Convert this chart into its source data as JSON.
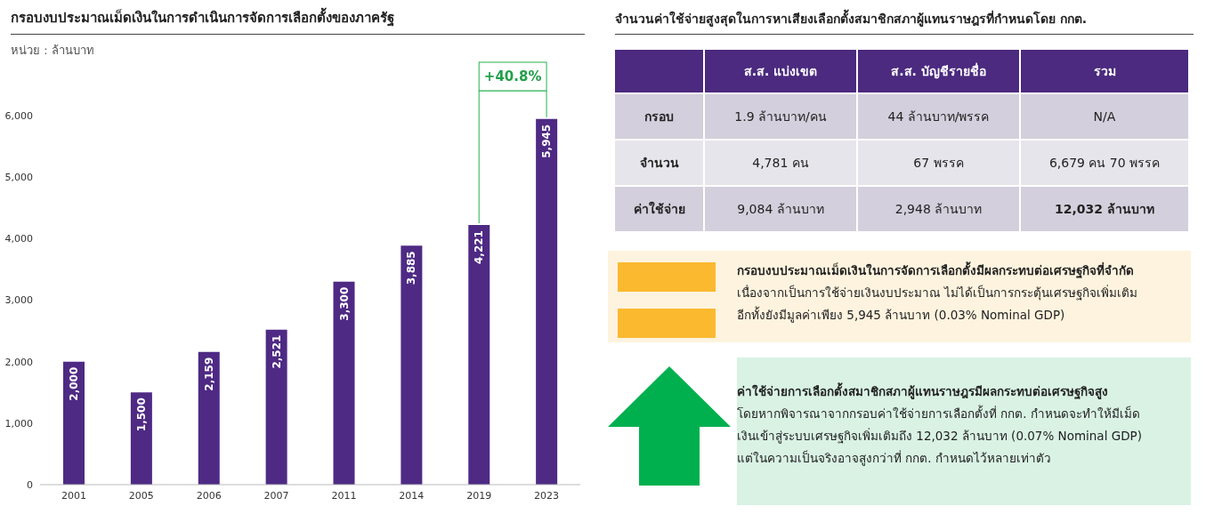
{
  "chart_data": [
    {
      "type": "bar",
      "title": "กรอบงบประมาณเม็ดเงินในการดำเนินการจัดการเลือกตั้งของภาครัฐ",
      "subtitle": "หน่วย : ล้านบาท",
      "categories": [
        "2001",
        "2005",
        "2006",
        "2007",
        "2011",
        "2014",
        "2019",
        "2023"
      ],
      "values": [
        2000,
        1500,
        2159,
        2521,
        3300,
        3885,
        4221,
        5945
      ],
      "color": "#4e2a84",
      "value_labels": [
        "2,000",
        "1,500",
        "2,159",
        "2,521",
        "3,300",
        "3,885",
        "4,221",
        "5,945"
      ],
      "ylim": [
        0,
        6000
      ],
      "yticks": [
        0,
        {
          "value": 1000,
          "label": "1,000"
        },
        {
          "value": 2000,
          "label": "2,000"
        },
        {
          "value": 3000,
          "label": "3,000"
        },
        {
          "value": 4000,
          "label": "4,000"
        },
        {
          "value": 5000,
          "label": "5,000"
        },
        {
          "value": 6000,
          "label": "6,000"
        }
      ],
      "annotations": [
        "+40.8%"
      ]
    },
    {
      "type": "other",
      "title": "จำนวนค่าใช้จ่ายสูงสุดในการหาเสียงเลือกตั้งสมาชิกสภาผู้แทนราษฎรที่กำหนดโดย กกต.",
      "annotations": [
        "ส.ส. แบ่งเขต",
        "ส.ส. บัญชีรายชื่อ",
        "รวม",
        "กรอบ",
        "1.9 ล้านบาท/คน",
        "44 ล้านบาท/พรรค",
        "N/A",
        "จำนวน",
        "4,781 คน",
        "67 พรรค",
        "6,679 คน 70 พรรค",
        "ค่าใช้จ่าย",
        "9,084 ล้านบาท",
        "2,948 ล้านบาท",
        "12,032 ล้านบาท",
        "กรอบงบประมาณเม็ดเงินในการจัดการเลือกตั้งมีผลกระทบต่อเศรษฐกิจที่จำกัด",
        "เนื่องจากเป็นการใช้จ่ายเงินงบประมาณ ไม่ได้เป็นการกระตุ้นเศรษฐกิจเพิ่มเติม",
        "อีกทั้งยังมีมูลค่าเพียง 5,945 ล้านบาท (0.03% Nominal GDP)",
        "ค่าใช้จ่ายการเลือกตั้งสมาชิกสภาผู้แทนราษฎรมีผลกระทบต่อเศรษฐกิจสูง",
        "โดยหากพิจารณาจากกรอบค่าใช้จ่ายการเลือกตั้งที่ กกต. กำหนดจะทำให้มีเม็ด",
        "เงินเข้าสู่ระบบเศรษฐกิจเพิ่มเติมถึง 12,032 ล้านบาท (0.07% Nominal GDP)",
        "แต่ในความเป็นจริงอาจสูงกว่าที่ กกต. กำหนดไว้หลายเท่าตัว"
      ]
    }
  ]
}
